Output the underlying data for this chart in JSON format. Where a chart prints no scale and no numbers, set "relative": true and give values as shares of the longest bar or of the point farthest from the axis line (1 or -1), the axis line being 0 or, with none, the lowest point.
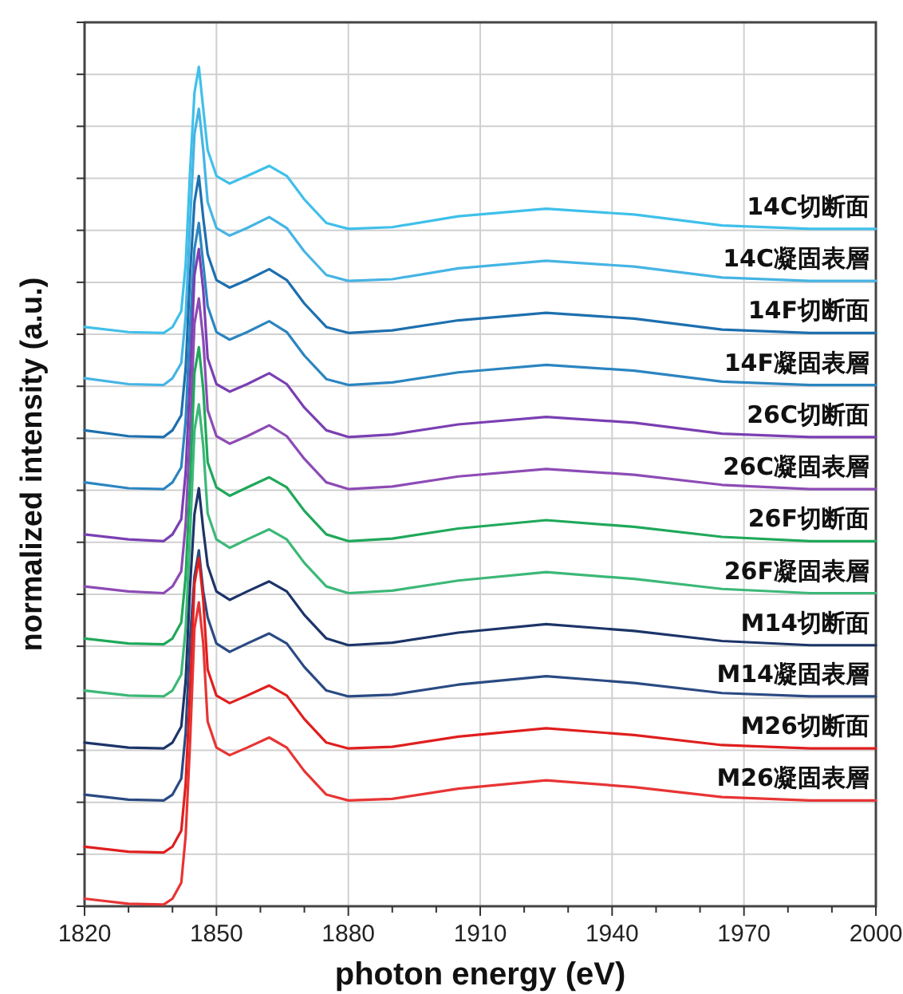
{
  "chart_data": {
    "type": "line",
    "relative": true,
    "xlabel": "photon energy (eV)",
    "ylabel": "normalized intensity (a.u.)",
    "xlim": [
      1820,
      2000
    ],
    "xticks": [
      1820,
      {
        "value": 1830,
        "label": null
      },
      {
        "value": 1840,
        "label": null
      },
      1850,
      {
        "value": 1860,
        "label": null
      },
      {
        "value": 1870,
        "label": null
      },
      1880,
      {
        "value": 1890,
        "label": null
      },
      {
        "value": 1900,
        "label": null
      },
      1910,
      {
        "value": 1920,
        "label": null
      },
      {
        "value": 1930,
        "label": null
      },
      1940,
      {
        "value": 1950,
        "label": null
      },
      {
        "value": 1960,
        "label": null
      },
      1970,
      {
        "value": 1980,
        "label": null
      },
      {
        "value": 1990,
        "label": null
      },
      2000
    ],
    "grid": true,
    "marker": "none",
    "line_style": "solid",
    "x": [
      1820,
      1830,
      1838,
      1840,
      1842,
      1843,
      1844,
      1845,
      1846,
      1847,
      1848,
      1850,
      1853,
      1857,
      1862,
      1866,
      1870,
      1875,
      1880,
      1890,
      1905,
      1925,
      1945,
      1965,
      1985,
      2000
    ],
    "series": [
      {
        "name": "14C切断面",
        "color": "#3fc0ea",
        "values": [
          0.69,
          0.684,
          0.683,
          0.69,
          0.709,
          0.765,
          0.876,
          0.969,
          1.0,
          0.95,
          0.901,
          0.87,
          0.861,
          0.87,
          0.882,
          0.87,
          0.842,
          0.814,
          0.807,
          0.809,
          0.822,
          0.831,
          0.824,
          0.811,
          0.807,
          0.807
        ]
      },
      {
        "name": "14C凝固表層",
        "color": "#45b4e4",
        "values": [
          0.629,
          0.622,
          0.621,
          0.629,
          0.647,
          0.703,
          0.814,
          0.92,
          0.95,
          0.901,
          0.839,
          0.808,
          0.799,
          0.808,
          0.821,
          0.808,
          0.78,
          0.752,
          0.745,
          0.747,
          0.76,
          0.769,
          0.762,
          0.749,
          0.745,
          0.745
        ]
      },
      {
        "name": "14F切断面",
        "color": "#1d6fae",
        "values": [
          0.567,
          0.56,
          0.559,
          0.567,
          0.585,
          0.641,
          0.752,
          0.839,
          0.87,
          0.82,
          0.777,
          0.746,
          0.737,
          0.746,
          0.759,
          0.746,
          0.718,
          0.69,
          0.683,
          0.686,
          0.698,
          0.707,
          0.7,
          0.687,
          0.683,
          0.683
        ]
      },
      {
        "name": "14F凝固表層",
        "color": "#2b85c0",
        "values": [
          0.505,
          0.498,
          0.497,
          0.505,
          0.523,
          0.579,
          0.69,
          0.783,
          0.814,
          0.765,
          0.715,
          0.684,
          0.675,
          0.684,
          0.697,
          0.684,
          0.656,
          0.628,
          0.621,
          0.624,
          0.636,
          0.645,
          0.638,
          0.625,
          0.621,
          0.621
        ]
      },
      {
        "name": "26C切断面",
        "color": "#7a3fb2",
        "values": [
          0.443,
          0.437,
          0.435,
          0.443,
          0.461,
          0.517,
          0.629,
          0.752,
          0.783,
          0.734,
          0.653,
          0.622,
          0.613,
          0.622,
          0.635,
          0.622,
          0.594,
          0.567,
          0.559,
          0.562,
          0.574,
          0.583,
          0.576,
          0.563,
          0.559,
          0.559
        ]
      },
      {
        "name": "26C凝固表層",
        "color": "#8d4bb5",
        "values": [
          0.381,
          0.375,
          0.373,
          0.381,
          0.399,
          0.455,
          0.567,
          0.694,
          0.724,
          0.675,
          0.591,
          0.56,
          0.551,
          0.56,
          0.573,
          0.56,
          0.533,
          0.505,
          0.497,
          0.5,
          0.512,
          0.521,
          0.514,
          0.502,
          0.497,
          0.497
        ]
      },
      {
        "name": "26F切断面",
        "color": "#1fa85a",
        "values": [
          0.319,
          0.313,
          0.312,
          0.319,
          0.338,
          0.393,
          0.505,
          0.635,
          0.666,
          0.616,
          0.529,
          0.499,
          0.489,
          0.499,
          0.511,
          0.499,
          0.471,
          0.443,
          0.435,
          0.438,
          0.45,
          0.46,
          0.452,
          0.44,
          0.435,
          0.435
        ]
      },
      {
        "name": "26F凝固表層",
        "color": "#3cb878",
        "values": [
          0.257,
          0.251,
          0.25,
          0.257,
          0.276,
          0.331,
          0.443,
          0.567,
          0.598,
          0.548,
          0.468,
          0.437,
          0.427,
          0.437,
          0.449,
          0.437,
          0.409,
          0.381,
          0.373,
          0.376,
          0.388,
          0.398,
          0.39,
          0.378,
          0.373,
          0.373
        ]
      },
      {
        "name": "M14切断面",
        "color": "#1c3468",
        "values": [
          0.195,
          0.189,
          0.188,
          0.195,
          0.214,
          0.269,
          0.381,
          0.467,
          0.498,
          0.449,
          0.406,
          0.375,
          0.365,
          0.375,
          0.387,
          0.375,
          0.347,
          0.319,
          0.311,
          0.314,
          0.326,
          0.336,
          0.328,
          0.316,
          0.311,
          0.311
        ]
      },
      {
        "name": "M14凝固表層",
        "color": "#2a4a82",
        "values": [
          0.133,
          0.127,
          0.126,
          0.133,
          0.152,
          0.207,
          0.319,
          0.393,
          0.424,
          0.375,
          0.344,
          0.313,
          0.303,
          0.313,
          0.325,
          0.313,
          0.285,
          0.257,
          0.25,
          0.252,
          0.264,
          0.274,
          0.266,
          0.254,
          0.25,
          0.25
        ]
      },
      {
        "name": "M26切断面",
        "color": "#e01e1e",
        "values": [
          0.071,
          0.065,
          0.064,
          0.071,
          0.09,
          0.146,
          0.257,
          0.384,
          0.415,
          0.365,
          0.282,
          0.251,
          0.242,
          0.251,
          0.263,
          0.251,
          0.223,
          0.195,
          0.188,
          0.19,
          0.202,
          0.212,
          0.204,
          0.192,
          0.188,
          0.188
        ]
      },
      {
        "name": "M26凝固表層",
        "color": "#e83434",
        "values": [
          0.009,
          0.003,
          0.002,
          0.009,
          0.028,
          0.084,
          0.195,
          0.331,
          0.362,
          0.313,
          0.22,
          0.189,
          0.18,
          0.189,
          0.201,
          0.189,
          0.161,
          0.133,
          0.126,
          0.128,
          0.14,
          0.15,
          0.142,
          0.13,
          0.126,
          0.126
        ]
      }
    ]
  }
}
